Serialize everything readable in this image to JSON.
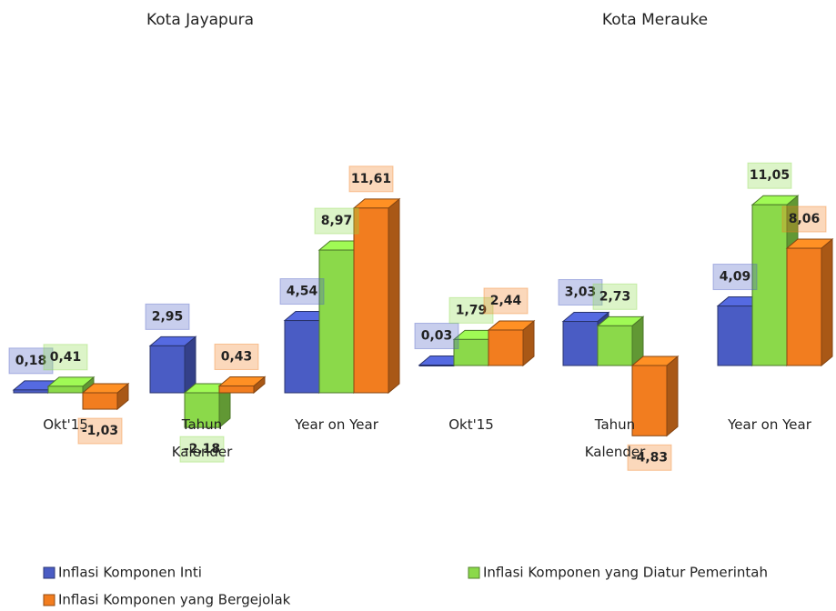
{
  "chart_data": [
    {
      "type": "bar3d",
      "title": "Kota Jayapura",
      "categories": [
        "Okt'15",
        "Tahun Kalender",
        "Year on Year"
      ],
      "ylim": [
        -3,
        12
      ],
      "series": [
        {
          "name": "Inflasi Komponen Inti",
          "color": "#4a5cc4",
          "values": [
            0.18,
            2.95,
            4.54
          ],
          "value_labels": [
            "0,18",
            "2,95",
            "4,54"
          ]
        },
        {
          "name": "Inflasi Komponen yang Diatur Pemerintah",
          "color": "#8bd94a",
          "values": [
            0.41,
            -2.18,
            8.97
          ],
          "value_labels": [
            "0,41",
            "-2,18",
            "8,97"
          ]
        },
        {
          "name": "Inflasi Komponen yang Bergejolak",
          "color": "#f27d1f",
          "values": [
            -1.03,
            0.43,
            11.61
          ],
          "value_labels": [
            "-1,03",
            "0,43",
            "11,61"
          ]
        }
      ]
    },
    {
      "type": "bar3d",
      "title": "Kota Merauke",
      "categories": [
        "Okt'15",
        "Tahun Kalender",
        "Year on Year"
      ],
      "ylim": [
        -6,
        12
      ],
      "series": [
        {
          "color": "#4a5cc4",
          "values": [
            0.03,
            3.03,
            4.09
          ],
          "value_labels": [
            "0,03",
            "3,03",
            "4,09"
          ]
        },
        {
          "color": "#8bd94a",
          "values": [
            1.79,
            2.73,
            11.05
          ],
          "value_labels": [
            "1,79",
            "2,73",
            "11,05"
          ]
        },
        {
          "color": "#f27d1f",
          "values": [
            2.44,
            -4.83,
            8.06
          ],
          "value_labels": [
            "2,44",
            "-4,83",
            "8,06"
          ]
        }
      ]
    }
  ]
}
